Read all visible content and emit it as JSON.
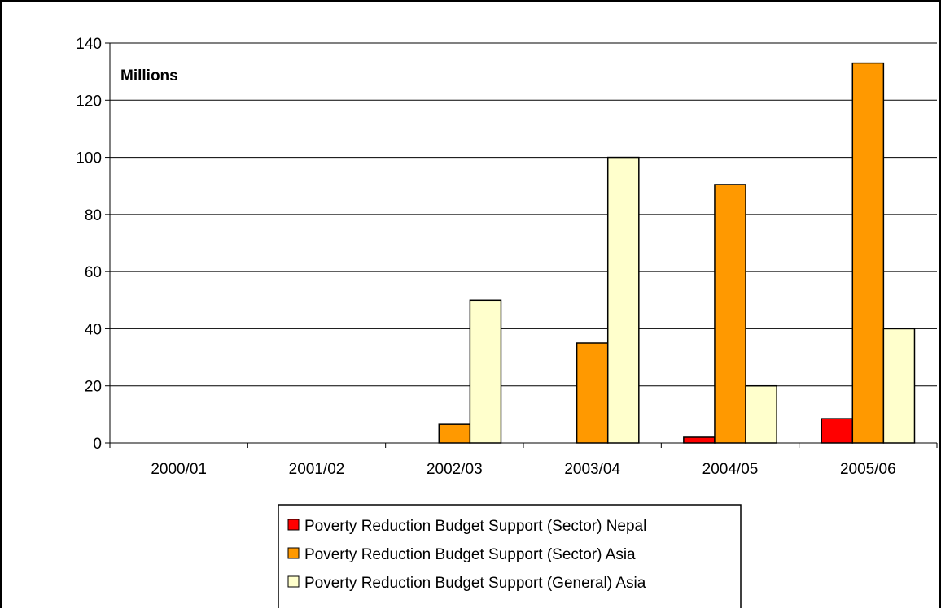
{
  "chart_data": {
    "type": "bar",
    "title": "",
    "xlabel": "",
    "ylabel": "",
    "units_label": "Millions",
    "categories": [
      "2000/01",
      "2001/02",
      "2002/03",
      "2003/04",
      "2004/05",
      "2005/06"
    ],
    "series": [
      {
        "name": "Poverty Reduction Budget Support (Sector) Nepal",
        "color": "#ff0000",
        "values": [
          0,
          0,
          0,
          0,
          2,
          8.5
        ]
      },
      {
        "name": "Poverty Reduction Budget Support (Sector) Asia",
        "color": "#ff9900",
        "values": [
          0,
          0,
          6.5,
          35,
          90.5,
          133
        ]
      },
      {
        "name": "Poverty Reduction Budget Support (General) Asia",
        "color": "#ffffcc",
        "values": [
          0,
          0,
          50,
          100,
          20,
          40
        ]
      }
    ],
    "ylim": [
      0,
      140
    ],
    "yticks": [
      0,
      20,
      40,
      60,
      80,
      100,
      120,
      140
    ],
    "grid": true,
    "legend_position": "bottom"
  }
}
